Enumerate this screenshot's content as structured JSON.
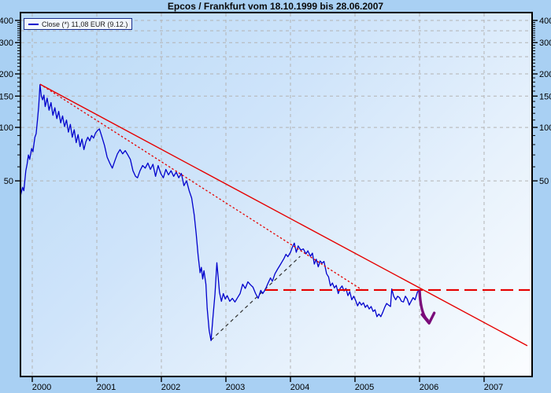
{
  "title": "Epcos / Frankfurt vom 18.10.1999 bis 28.06.2007",
  "legend": {
    "label": "Close (*) 11,08 EUR (9.12.)",
    "series_name": "Close",
    "last_value": "11,08",
    "currency": "EUR",
    "last_date": "9.12.",
    "line_color": "#0000cc"
  },
  "colors": {
    "background": "#a9d0f3",
    "plot_gradient_start": "#b9daf7",
    "plot_gradient_end": "#fbfdff",
    "grid": "#b3b3b3",
    "frame": "#000000",
    "price_line": "#0000cc",
    "trend_red": "#e60000",
    "trend_black": "#303030",
    "arrow_purple": "#7a0b7a",
    "axis_text": "#000000",
    "legend_bg": "#f2f7fd",
    "legend_border": "#1a2e8c"
  },
  "chart_data": {
    "type": "line",
    "title": "Epcos / Frankfurt vom 18.10.1999 bis 28.06.2007",
    "ylabel": "EUR",
    "y_scale": "log",
    "grid": true,
    "xlim": [
      1999.83,
      2007.73
    ],
    "ylim": [
      4.0,
      443
    ],
    "x_ticks": [
      2000,
      2001,
      2002,
      2003,
      2004,
      2005,
      2006,
      2007
    ],
    "y_major_ticks": [
      400,
      300,
      200,
      150,
      100,
      50
    ],
    "y_gridlines": [
      400,
      350,
      300,
      250,
      200,
      150,
      100,
      50
    ],
    "y_minor_ticks": [
      390,
      380,
      370,
      360,
      350,
      340,
      330,
      320,
      310,
      290,
      280,
      270,
      260,
      250,
      240,
      230,
      220,
      210,
      190,
      180,
      170,
      160,
      140,
      130,
      120,
      110,
      90,
      80,
      70,
      60
    ],
    "series": [
      {
        "name": "Close",
        "color": "#0000cc",
        "points": [
          [
            1999.79,
            37.5
          ],
          [
            1999.81,
            40
          ],
          [
            1999.83,
            43
          ],
          [
            1999.85,
            46
          ],
          [
            1999.87,
            44
          ],
          [
            1999.9,
            57
          ],
          [
            1999.92,
            62
          ],
          [
            1999.94,
            70
          ],
          [
            1999.96,
            66
          ],
          [
            1999.99,
            76
          ],
          [
            2000.01,
            73
          ],
          [
            2000.04,
            88
          ],
          [
            2000.06,
            92
          ],
          [
            2000.08,
            110
          ],
          [
            2000.1,
            132
          ],
          [
            2000.12,
            174
          ],
          [
            2000.14,
            150
          ],
          [
            2000.16,
            143
          ],
          [
            2000.18,
            152
          ],
          [
            2000.2,
            131
          ],
          [
            2000.23,
            146
          ],
          [
            2000.26,
            125
          ],
          [
            2000.29,
            138
          ],
          [
            2000.32,
            117
          ],
          [
            2000.35,
            129
          ],
          [
            2000.38,
            112
          ],
          [
            2000.41,
            123
          ],
          [
            2000.44,
            106
          ],
          [
            2000.47,
            116
          ],
          [
            2000.5,
            101
          ],
          [
            2000.53,
            110
          ],
          [
            2000.56,
            94
          ],
          [
            2000.59,
            104
          ],
          [
            2000.62,
            88
          ],
          [
            2000.65,
            97
          ],
          [
            2000.68,
            82
          ],
          [
            2000.71,
            91
          ],
          [
            2000.74,
            78
          ],
          [
            2000.77,
            86
          ],
          [
            2000.8,
            75
          ],
          [
            2000.83,
            83
          ],
          [
            2000.86,
            88
          ],
          [
            2000.89,
            84
          ],
          [
            2000.92,
            90
          ],
          [
            2000.95,
            87
          ],
          [
            2000.98,
            93
          ],
          [
            2001.01,
            96
          ],
          [
            2001.04,
            98
          ],
          [
            2001.08,
            88
          ],
          [
            2001.12,
            79
          ],
          [
            2001.16,
            68
          ],
          [
            2001.2,
            63
          ],
          [
            2001.24,
            59
          ],
          [
            2001.28,
            65
          ],
          [
            2001.32,
            71
          ],
          [
            2001.36,
            75
          ],
          [
            2001.4,
            71
          ],
          [
            2001.44,
            74
          ],
          [
            2001.48,
            70
          ],
          [
            2001.52,
            66
          ],
          [
            2001.56,
            57
          ],
          [
            2001.6,
            53
          ],
          [
            2001.63,
            52
          ],
          [
            2001.67,
            57
          ],
          [
            2001.71,
            61
          ],
          [
            2001.75,
            59
          ],
          [
            2001.79,
            63
          ],
          [
            2001.83,
            58
          ],
          [
            2001.87,
            62
          ],
          [
            2001.91,
            53
          ],
          [
            2001.95,
            61
          ],
          [
            2001.99,
            55
          ],
          [
            2002.03,
            52
          ],
          [
            2002.07,
            58
          ],
          [
            2002.11,
            54
          ],
          [
            2002.15,
            57
          ],
          [
            2002.19,
            53
          ],
          [
            2002.23,
            56
          ],
          [
            2002.27,
            52
          ],
          [
            2002.31,
            55
          ],
          [
            2002.35,
            47
          ],
          [
            2002.39,
            50
          ],
          [
            2002.43,
            44
          ],
          [
            2002.47,
            40
          ],
          [
            2002.51,
            32
          ],
          [
            2002.54,
            25
          ],
          [
            2002.57,
            19
          ],
          [
            2002.6,
            15.2
          ],
          [
            2002.62,
            16.3
          ],
          [
            2002.64,
            14.0
          ],
          [
            2002.66,
            15.6
          ],
          [
            2002.69,
            13.1
          ],
          [
            2002.71,
            9.6
          ],
          [
            2002.74,
            7.2
          ],
          [
            2002.77,
            6.3
          ],
          [
            2002.8,
            8.6
          ],
          [
            2002.83,
            11.5
          ],
          [
            2002.86,
            17.3
          ],
          [
            2002.88,
            14.3
          ],
          [
            2002.9,
            11.8
          ],
          [
            2002.93,
            10.5
          ],
          [
            2002.96,
            11.6
          ],
          [
            2002.99,
            10.8
          ],
          [
            2003.02,
            11.3
          ],
          [
            2003.06,
            10.5
          ],
          [
            2003.1,
            10.9
          ],
          [
            2003.14,
            10.4
          ],
          [
            2003.18,
            11.0
          ],
          [
            2003.22,
            11.6
          ],
          [
            2003.26,
            13.1
          ],
          [
            2003.3,
            12.4
          ],
          [
            2003.34,
            13.5
          ],
          [
            2003.38,
            13.0
          ],
          [
            2003.42,
            12.6
          ],
          [
            2003.46,
            11.6
          ],
          [
            2003.5,
            10.9
          ],
          [
            2003.54,
            12.1
          ],
          [
            2003.57,
            11.6
          ],
          [
            2003.61,
            12.2
          ],
          [
            2003.65,
            13.2
          ],
          [
            2003.69,
            14.2
          ],
          [
            2003.72,
            13.6
          ],
          [
            2003.76,
            15.0
          ],
          [
            2003.8,
            15.9
          ],
          [
            2003.84,
            16.8
          ],
          [
            2003.87,
            17.5
          ],
          [
            2003.9,
            18.3
          ],
          [
            2003.93,
            19.3
          ],
          [
            2003.96,
            18.7
          ],
          [
            2004.0,
            19.8
          ],
          [
            2004.03,
            21.2
          ],
          [
            2004.06,
            22.3
          ],
          [
            2004.09,
            19.8
          ],
          [
            2004.12,
            21.5
          ],
          [
            2004.16,
            20.4
          ],
          [
            2004.2,
            20.7
          ],
          [
            2004.24,
            19.4
          ],
          [
            2004.27,
            20.2
          ],
          [
            2004.31,
            18.8
          ],
          [
            2004.34,
            19.6
          ],
          [
            2004.37,
            17.0
          ],
          [
            2004.4,
            18.1
          ],
          [
            2004.43,
            16.4
          ],
          [
            2004.46,
            17.7
          ],
          [
            2004.49,
            17.2
          ],
          [
            2004.52,
            17.6
          ],
          [
            2004.56,
            15.0
          ],
          [
            2004.59,
            14.4
          ],
          [
            2004.62,
            12.8
          ],
          [
            2004.65,
            13.3
          ],
          [
            2004.68,
            12.5
          ],
          [
            2004.71,
            12.9
          ],
          [
            2004.74,
            11.6
          ],
          [
            2004.77,
            12.4
          ],
          [
            2004.8,
            12.8
          ],
          [
            2004.83,
            12.0
          ],
          [
            2004.86,
            12.4
          ],
          [
            2004.89,
            11.3
          ],
          [
            2004.92,
            11.9
          ],
          [
            2004.95,
            10.7
          ],
          [
            2004.98,
            11.2
          ],
          [
            2005.01,
            10.6
          ],
          [
            2005.04,
            9.9
          ],
          [
            2005.07,
            10.4
          ],
          [
            2005.1,
            10.0
          ],
          [
            2005.13,
            10.3
          ],
          [
            2005.16,
            9.7
          ],
          [
            2005.19,
            10.0
          ],
          [
            2005.22,
            9.5
          ],
          [
            2005.25,
            9.8
          ],
          [
            2005.28,
            9.2
          ],
          [
            2005.31,
            9.4
          ],
          [
            2005.34,
            8.6
          ],
          [
            2005.37,
            8.9
          ],
          [
            2005.4,
            8.6
          ],
          [
            2005.43,
            9.1
          ],
          [
            2005.46,
            9.7
          ],
          [
            2005.49,
            10.2
          ],
          [
            2005.52,
            10.0
          ],
          [
            2005.55,
            9.8
          ],
          [
            2005.57,
            12.3
          ],
          [
            2005.6,
            11.2
          ],
          [
            2005.63,
            10.7
          ],
          [
            2005.66,
            11.2
          ],
          [
            2005.69,
            11.0
          ],
          [
            2005.72,
            10.5
          ],
          [
            2005.75,
            10.4
          ],
          [
            2005.78,
            11.2
          ],
          [
            2005.81,
            10.8
          ],
          [
            2005.84,
            10.0
          ],
          [
            2005.87,
            10.5
          ],
          [
            2005.9,
            11.0
          ],
          [
            2005.93,
            10.7
          ],
          [
            2005.97,
            11.9
          ],
          [
            2006.0,
            12.0
          ]
        ]
      }
    ],
    "trendlines": [
      {
        "name": "downtrend-solid",
        "style": "solid",
        "color": "#e60000",
        "width": 1.4,
        "from": [
          2000.12,
          175
        ],
        "to": [
          2007.67,
          5.9
        ]
      },
      {
        "name": "downtrend-dotted",
        "style": "dotted",
        "color": "#e60000",
        "width": 1.3,
        "from": [
          2000.12,
          175
        ],
        "to": [
          2005.12,
          12.1
        ]
      },
      {
        "name": "recovery-dashed-black",
        "style": "dashed",
        "color": "#303030",
        "width": 1.2,
        "from": [
          2002.77,
          6.35
        ],
        "to": [
          2004.15,
          18.8
        ]
      },
      {
        "name": "resistance-dashed-horizontal",
        "style": "long-dash",
        "color": "#e60000",
        "width": 2.2,
        "from": [
          2003.61,
          12.15
        ],
        "to": [
          2007.71,
          12.15
        ]
      }
    ],
    "annotation_arrow": {
      "name": "breakdown-arrow",
      "color": "#7a0b7a",
      "from": [
        2006.0,
        12.0
      ],
      "to": [
        2006.16,
        7.9
      ]
    }
  }
}
